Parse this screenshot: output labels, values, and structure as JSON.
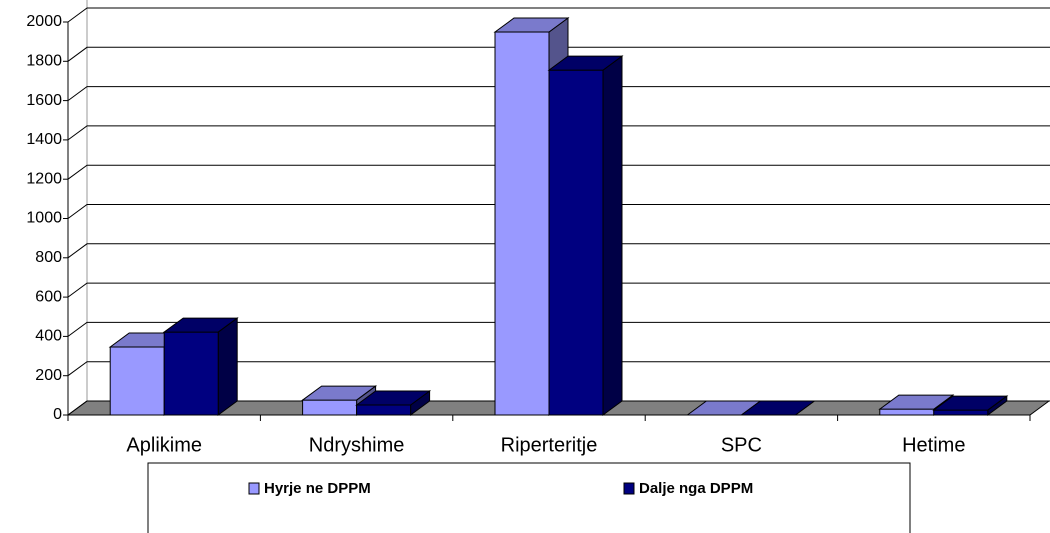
{
  "chart_data": {
    "type": "bar",
    "three_d": true,
    "categories": [
      "Aplikime",
      "Ndryshime",
      "Riperteritje",
      "SPC",
      "Hetime"
    ],
    "series": [
      {
        "name": "Hyrje ne DPPM",
        "color": "#9999ff",
        "values": [
          346,
          76,
          1949,
          0,
          30
        ]
      },
      {
        "name": "Dalje nga DPPM",
        "color": "#000080",
        "values": [
          422,
          51,
          1755,
          0,
          25
        ]
      }
    ],
    "ylim": [
      0,
      2000
    ],
    "yticks": [
      0,
      200,
      400,
      600,
      800,
      1000,
      1200,
      1400,
      1600,
      1800,
      2000
    ],
    "grid": true,
    "legend": "bottom"
  }
}
